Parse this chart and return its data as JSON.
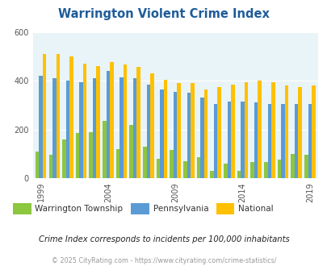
{
  "title": "Warrington Violent Crime Index",
  "years": [
    1999,
    2000,
    2001,
    2002,
    2003,
    2004,
    2005,
    2006,
    2007,
    2008,
    2009,
    2010,
    2011,
    2012,
    2013,
    2014,
    2015,
    2016,
    2017,
    2018,
    2019
  ],
  "warrington": [
    110,
    95,
    160,
    185,
    190,
    235,
    120,
    220,
    130,
    80,
    115,
    70,
    85,
    30,
    60,
    30,
    65,
    65,
    75,
    100,
    95
  ],
  "pennsylvania": [
    420,
    410,
    400,
    395,
    410,
    440,
    415,
    410,
    385,
    365,
    355,
    350,
    330,
    305,
    315,
    315,
    310,
    305,
    305,
    305,
    305
  ],
  "national": [
    510,
    510,
    500,
    470,
    460,
    475,
    465,
    455,
    430,
    405,
    390,
    390,
    365,
    375,
    385,
    395,
    400,
    395,
    380,
    375,
    380
  ],
  "x_tick_years": [
    1999,
    2004,
    2009,
    2014,
    2019
  ],
  "warrington_color": "#8DC63F",
  "pennsylvania_color": "#5B9BD5",
  "national_color": "#FFC000",
  "bg_color": "#E8F4F8",
  "title_color": "#1F5C99",
  "legend_label_color": "#333333",
  "subtitle": "Crime Index corresponds to incidents per 100,000 inhabitants",
  "footer": "© 2025 CityRating.com - https://www.cityrating.com/crime-statistics/",
  "ylim": [
    0,
    600
  ],
  "yticks": [
    0,
    200,
    400,
    600
  ],
  "bar_width": 0.27
}
